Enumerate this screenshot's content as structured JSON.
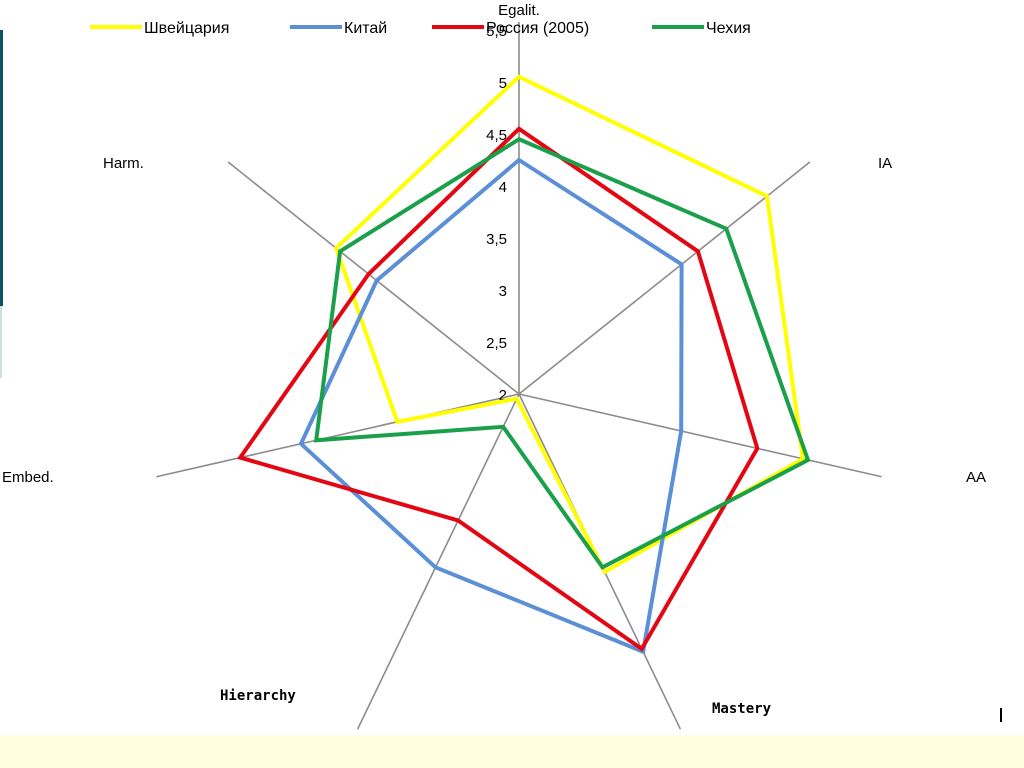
{
  "chart_data": {
    "type": "radar",
    "axes": [
      "Egalit.",
      "IA",
      "AA",
      "Mastery",
      "Hierarchy",
      "Embed.",
      "Harm."
    ],
    "rlim": [
      2,
      5.5
    ],
    "ticks": [
      "2",
      "2,5",
      "3",
      "3,5",
      "4",
      "4,5",
      "5",
      "5,5"
    ],
    "tick_values": [
      2,
      2.5,
      3,
      3.5,
      4,
      4.5,
      5,
      5.5
    ],
    "legend_position": "top",
    "series": [
      {
        "name": "Швейцария",
        "color": "#ffff00",
        "values": [
          5.05,
          5.05,
          4.8,
          3.9,
          2.05,
          3.2,
          4.25
        ]
      },
      {
        "name": "Китай",
        "color": "#5b8fd6",
        "values": [
          4.25,
          4.0,
          3.6,
          4.75,
          3.85,
          4.15,
          3.75
        ]
      },
      {
        "name": "Россия (2005)",
        "color": "#e30613",
        "values": [
          4.55,
          4.2,
          4.35,
          4.72,
          3.35,
          4.75,
          3.85
        ]
      },
      {
        "name": "Чехия",
        "color": "#1aa04a",
        "values": [
          4.45,
          4.55,
          4.85,
          3.85,
          2.35,
          4.0,
          4.2
        ]
      }
    ]
  }
}
